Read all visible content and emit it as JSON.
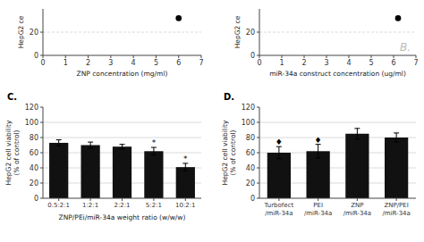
{
  "chart_data": [
    {
      "type": "scatter",
      "x": [
        6.0
      ],
      "values": [
        32
      ],
      "color": "black",
      "xlabel": "ZNP concentration (mg/ml)",
      "ylabel": "HepG2 ce",
      "xlim": [
        0,
        7
      ],
      "ylim": [
        0,
        40
      ],
      "xticks": [
        0,
        1,
        2,
        3,
        4,
        5,
        6,
        7
      ],
      "yticks": [
        0,
        20
      ],
      "grid": true
    },
    {
      "type": "scatter",
      "x": [
        6.2
      ],
      "values": [
        32
      ],
      "color": "black",
      "xlabel": "miR-34a construct concentration (ug/ml)",
      "ylabel": "HepG2 ce",
      "xlim": [
        0,
        7
      ],
      "ylim": [
        0,
        40
      ],
      "xticks": [
        0,
        1,
        2,
        3,
        4,
        5,
        6,
        7
      ],
      "yticks": [
        0,
        20
      ],
      "grid": true,
      "annotations": [
        {
          "text": "B."
        }
      ]
    },
    {
      "type": "bar",
      "title": "C.",
      "categories": [
        "0.5:2:1",
        "1:2:1",
        "2:2:1",
        "5:2:1",
        "10:2:1"
      ],
      "values": [
        73,
        70,
        68,
        62,
        41
      ],
      "errors": [
        4,
        4,
        3,
        5,
        5
      ],
      "color": "#111111",
      "xlabel": "ZNP/PEi/miR-34a weight ratio (w/w/w)",
      "ylabel": "HepG2 cell viability\n(% of control)",
      "ylim": [
        0,
        120
      ],
      "yticks": [
        0,
        20,
        40,
        60,
        80,
        100,
        120
      ],
      "grid": true,
      "annotations": [
        {
          "x": "5:2:1",
          "text": "*"
        },
        {
          "x": "10:2:1",
          "text": "*"
        }
      ]
    },
    {
      "type": "bar",
      "title": "D.",
      "categories": [
        "Turbofect\n/miR-34a",
        "PEI\n/miR-34a",
        "ZNP\n/miR-34a",
        "ZNP/PEI\n/miR-34a"
      ],
      "values": [
        60,
        62,
        85,
        80
      ],
      "errors": [
        8,
        9,
        7,
        6
      ],
      "color": "#111111",
      "ylabel": "HepG2 cell viability\n(% of control)",
      "ylim": [
        0,
        120
      ],
      "yticks": [
        0,
        20,
        40,
        60,
        80,
        100,
        120
      ],
      "grid": true,
      "annotations": [
        {
          "x": "Turbofect\n/miR-34a",
          "text": "♦"
        },
        {
          "x": "PEI\n/miR-34a",
          "text": "♦"
        }
      ]
    }
  ]
}
